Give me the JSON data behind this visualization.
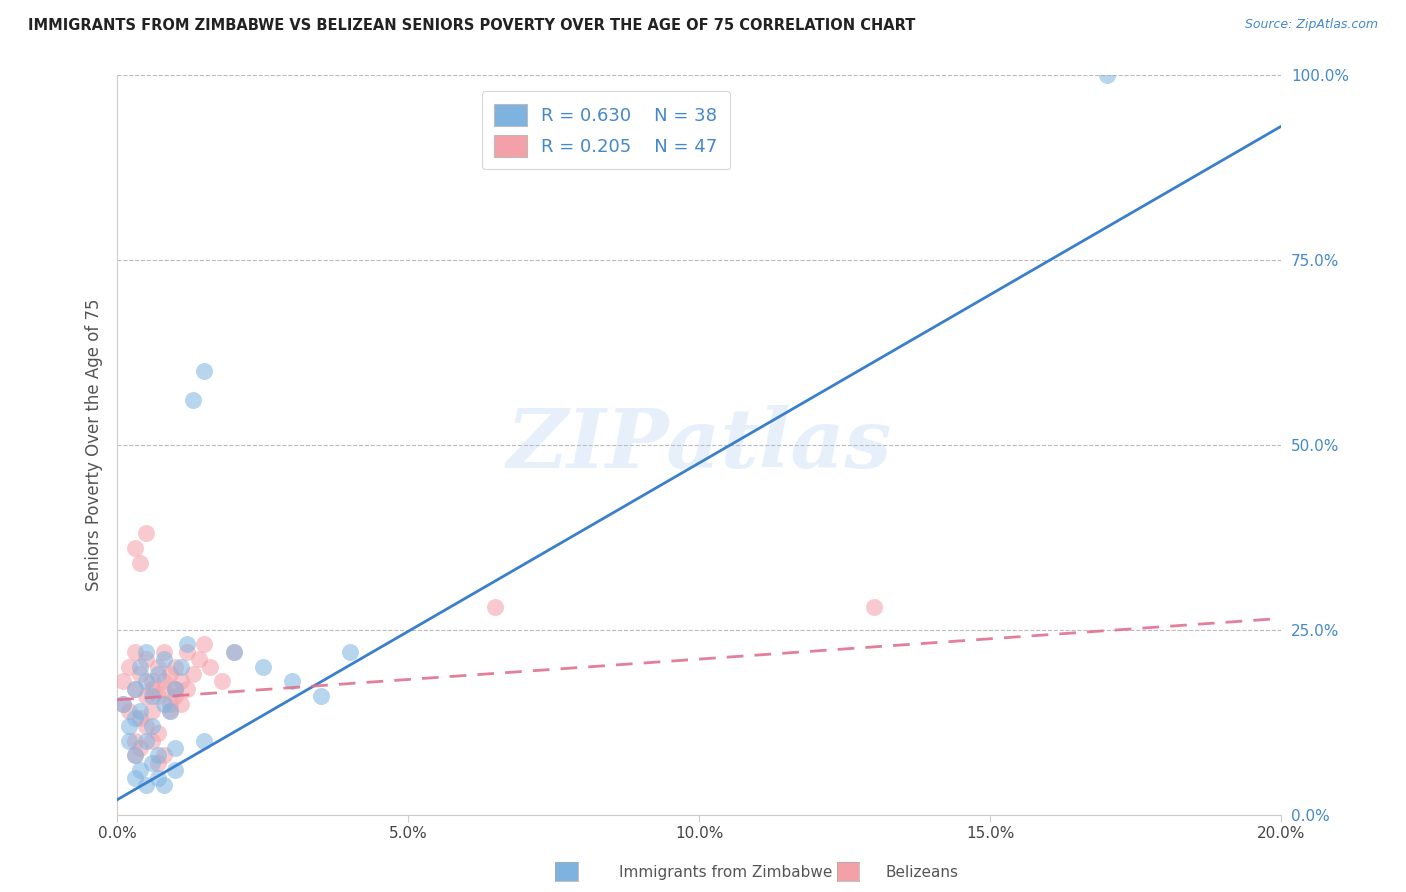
{
  "title": "IMMIGRANTS FROM ZIMBABWE VS BELIZEAN SENIORS POVERTY OVER THE AGE OF 75 CORRELATION CHART",
  "source_text": "Source: ZipAtlas.com",
  "ylabel": "Seniors Poverty Over the Age of 75",
  "xlabel_ticks": [
    "0.0%",
    "5.0%",
    "10.0%",
    "15.0%",
    "20.0%"
  ],
  "xlabel_values": [
    0.0,
    0.05,
    0.1,
    0.15,
    0.2
  ],
  "ylabel_ticks": [
    "0.0%",
    "25.0%",
    "50.0%",
    "75.0%",
    "100.0%"
  ],
  "ylabel_values": [
    0.0,
    0.25,
    0.5,
    0.75,
    1.0
  ],
  "xlim": [
    0.0,
    0.2
  ],
  "ylim": [
    0.0,
    1.0
  ],
  "blue_color": "#7EB3E0",
  "pink_color": "#F4A0A8",
  "blue_line_color": "#3A7FCC",
  "pink_line_color": "#E07090",
  "R_blue": 0.63,
  "N_blue": 38,
  "R_pink": 0.205,
  "N_pink": 47,
  "label_blue": "Immigrants from Zimbabwe",
  "label_pink": "Belizeans",
  "watermark": "ZIPatlas",
  "blue_line_x0": 0.0,
  "blue_line_y0": 0.02,
  "blue_line_x1": 0.2,
  "blue_line_y1": 0.93,
  "pink_line_x0": 0.0,
  "pink_line_y0": 0.155,
  "pink_line_x1": 0.2,
  "pink_line_y1": 0.265,
  "blue_scatter_x": [
    0.001,
    0.002,
    0.002,
    0.003,
    0.003,
    0.003,
    0.004,
    0.004,
    0.005,
    0.005,
    0.005,
    0.006,
    0.006,
    0.007,
    0.007,
    0.008,
    0.008,
    0.009,
    0.01,
    0.01,
    0.011,
    0.012,
    0.013,
    0.015,
    0.02,
    0.025,
    0.03,
    0.035,
    0.04,
    0.003,
    0.004,
    0.005,
    0.006,
    0.007,
    0.008,
    0.01,
    0.015,
    0.17
  ],
  "blue_scatter_y": [
    0.15,
    0.12,
    0.1,
    0.17,
    0.13,
    0.08,
    0.2,
    0.14,
    0.18,
    0.22,
    0.1,
    0.16,
    0.12,
    0.19,
    0.08,
    0.21,
    0.15,
    0.14,
    0.17,
    0.09,
    0.2,
    0.23,
    0.56,
    0.6,
    0.22,
    0.2,
    0.18,
    0.16,
    0.22,
    0.05,
    0.06,
    0.04,
    0.07,
    0.05,
    0.04,
    0.06,
    0.1,
    1.0
  ],
  "pink_scatter_x": [
    0.001,
    0.001,
    0.002,
    0.002,
    0.003,
    0.003,
    0.003,
    0.004,
    0.004,
    0.005,
    0.005,
    0.005,
    0.006,
    0.006,
    0.007,
    0.007,
    0.008,
    0.008,
    0.009,
    0.009,
    0.01,
    0.01,
    0.011,
    0.012,
    0.013,
    0.014,
    0.015,
    0.016,
    0.018,
    0.02,
    0.003,
    0.004,
    0.005,
    0.006,
    0.007,
    0.008,
    0.009,
    0.01,
    0.011,
    0.012,
    0.003,
    0.004,
    0.006,
    0.007,
    0.008,
    0.065,
    0.13
  ],
  "pink_scatter_y": [
    0.15,
    0.18,
    0.2,
    0.14,
    0.22,
    0.17,
    0.1,
    0.19,
    0.13,
    0.21,
    0.16,
    0.12,
    0.18,
    0.14,
    0.2,
    0.11,
    0.17,
    0.22,
    0.15,
    0.19,
    0.2,
    0.17,
    0.18,
    0.22,
    0.19,
    0.21,
    0.23,
    0.2,
    0.18,
    0.22,
    0.36,
    0.34,
    0.38,
    0.17,
    0.16,
    0.18,
    0.14,
    0.16,
    0.15,
    0.17,
    0.08,
    0.09,
    0.1,
    0.07,
    0.08,
    0.28,
    0.28
  ]
}
